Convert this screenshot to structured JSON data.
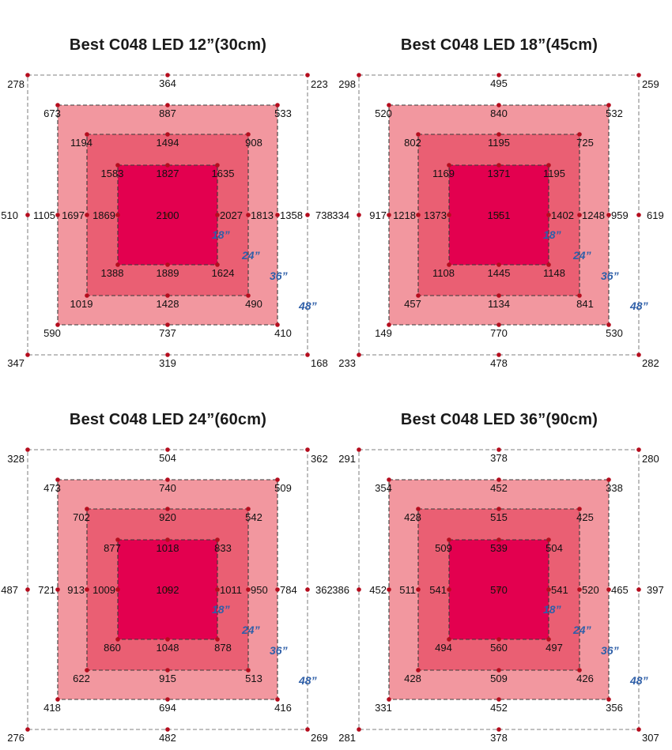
{
  "colors": {
    "zone_18": "#e3004f",
    "zone_24": "#ea5f73",
    "zone_36": "#f2979f",
    "point": "#b50d1e",
    "dash_outer": "#9a9a9a",
    "dash_inner": "#3a3a3a",
    "ring_label": "#2f5fa8"
  },
  "ring_labels": [
    "18”",
    "24”",
    "36”",
    "48”"
  ],
  "chart_data": [
    {
      "type": "heatmap",
      "title": "Best C048 LED 12”(30cm)",
      "rings": [
        {
          "label": "48”",
          "corners": {
            "tl": 278,
            "tm": 364,
            "tr": 223,
            "ml": 510,
            "mr": 738,
            "bl": 347,
            "bm": 319,
            "br": 168
          }
        },
        {
          "label": "36”",
          "corners": {
            "tl": 673,
            "tm": 887,
            "tr": 533,
            "ml": 1105,
            "mr": 1358,
            "bl": 590,
            "bm": 737,
            "br": 410
          }
        },
        {
          "label": "24”",
          "corners": {
            "tl": 1194,
            "tm": 1494,
            "tr": 908,
            "ml": 1697,
            "mr": 1813,
            "bl": 1019,
            "bm": 1428,
            "br": 490
          }
        },
        {
          "label": "18”",
          "corners": {
            "tl": 1583,
            "tm": 1827,
            "tr": 1635,
            "ml": 1869,
            "mr": 2027,
            "bl": 1388,
            "bm": 1889,
            "br": 1624
          }
        }
      ],
      "center": 2100
    },
    {
      "type": "heatmap",
      "title": "Best C048 LED 18”(45cm)",
      "rings": [
        {
          "label": "48”",
          "corners": {
            "tl": 298,
            "tm": 495,
            "tr": 259,
            "ml": 334,
            "mr": 619,
            "bl": 233,
            "bm": 478,
            "br": 282
          }
        },
        {
          "label": "36”",
          "corners": {
            "tl": 520,
            "tm": 840,
            "tr": 532,
            "ml": 917,
            "mr": 959,
            "bl": 149,
            "bm": 770,
            "br": 530
          }
        },
        {
          "label": "24”",
          "corners": {
            "tl": 802,
            "tm": 1195,
            "tr": 725,
            "ml": 1218,
            "mr": 1248,
            "bl": 457,
            "bm": 1134,
            "br": 841
          }
        },
        {
          "label": "18”",
          "corners": {
            "tl": 1169,
            "tm": 1371,
            "tr": 1195,
            "ml": 1373,
            "mr": 1402,
            "bl": 1108,
            "bm": 1445,
            "br": 1148
          }
        }
      ],
      "center": 1551
    },
    {
      "type": "heatmap",
      "title": "Best C048 LED 24”(60cm)",
      "rings": [
        {
          "label": "48”",
          "corners": {
            "tl": 328,
            "tm": 504,
            "tr": 362,
            "ml": 487,
            "mr": 362,
            "bl": 276,
            "bm": 482,
            "br": 269
          }
        },
        {
          "label": "36”",
          "corners": {
            "tl": 473,
            "tm": 740,
            "tr": 509,
            "ml": 721,
            "mr": 784,
            "bl": 418,
            "bm": 694,
            "br": 416
          }
        },
        {
          "label": "24”",
          "corners": {
            "tl": 702,
            "tm": 920,
            "tr": 542,
            "ml": 913,
            "mr": 950,
            "bl": 622,
            "bm": 915,
            "br": 513
          }
        },
        {
          "label": "18”",
          "corners": {
            "tl": 877,
            "tm": 1018,
            "tr": 833,
            "ml": 1009,
            "mr": 1011,
            "bl": 860,
            "bm": 1048,
            "br": 878
          }
        }
      ],
      "center": 1092
    },
    {
      "type": "heatmap",
      "title": "Best C048 LED 36”(90cm)",
      "rings": [
        {
          "label": "48”",
          "corners": {
            "tl": 291,
            "tm": 378,
            "tr": 280,
            "ml": 386,
            "mr": 397,
            "bl": 281,
            "bm": 378,
            "br": 307
          }
        },
        {
          "label": "36”",
          "corners": {
            "tl": 354,
            "tm": 452,
            "tr": 338,
            "ml": 452,
            "mr": 465,
            "bl": 331,
            "bm": 452,
            "br": 356
          }
        },
        {
          "label": "24”",
          "corners": {
            "tl": 428,
            "tm": 515,
            "tr": 425,
            "ml": 511,
            "mr": 520,
            "bl": 428,
            "bm": 509,
            "br": 426
          }
        },
        {
          "label": "18”",
          "corners": {
            "tl": 509,
            "tm": 539,
            "tr": 504,
            "ml": 541,
            "mr": 541,
            "bl": 494,
            "bm": 560,
            "br": 497
          }
        }
      ],
      "center": 570
    }
  ]
}
